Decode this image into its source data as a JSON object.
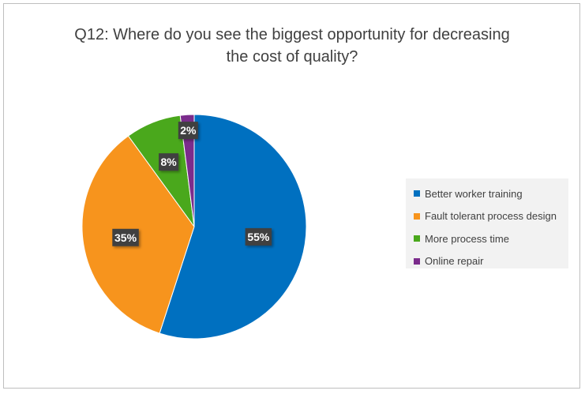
{
  "chart_data": {
    "type": "pie",
    "title": "Q12: Where do you see the biggest opportunity for decreasing the cost of quality?",
    "title_lines": [
      "Q12: Where do you see the biggest opportunity for decreasing",
      "the cost of quality?"
    ],
    "categories": [
      "Better worker training",
      "Fault tolerant process design",
      "More process time",
      "Online repair"
    ],
    "values": [
      55,
      35,
      8,
      2
    ],
    "data_labels": [
      "55%",
      "35%",
      "8%",
      "2%"
    ],
    "colors": [
      "#0070c0",
      "#f7941d",
      "#4aa81c",
      "#7b2c8c"
    ],
    "legend_position": "right"
  }
}
